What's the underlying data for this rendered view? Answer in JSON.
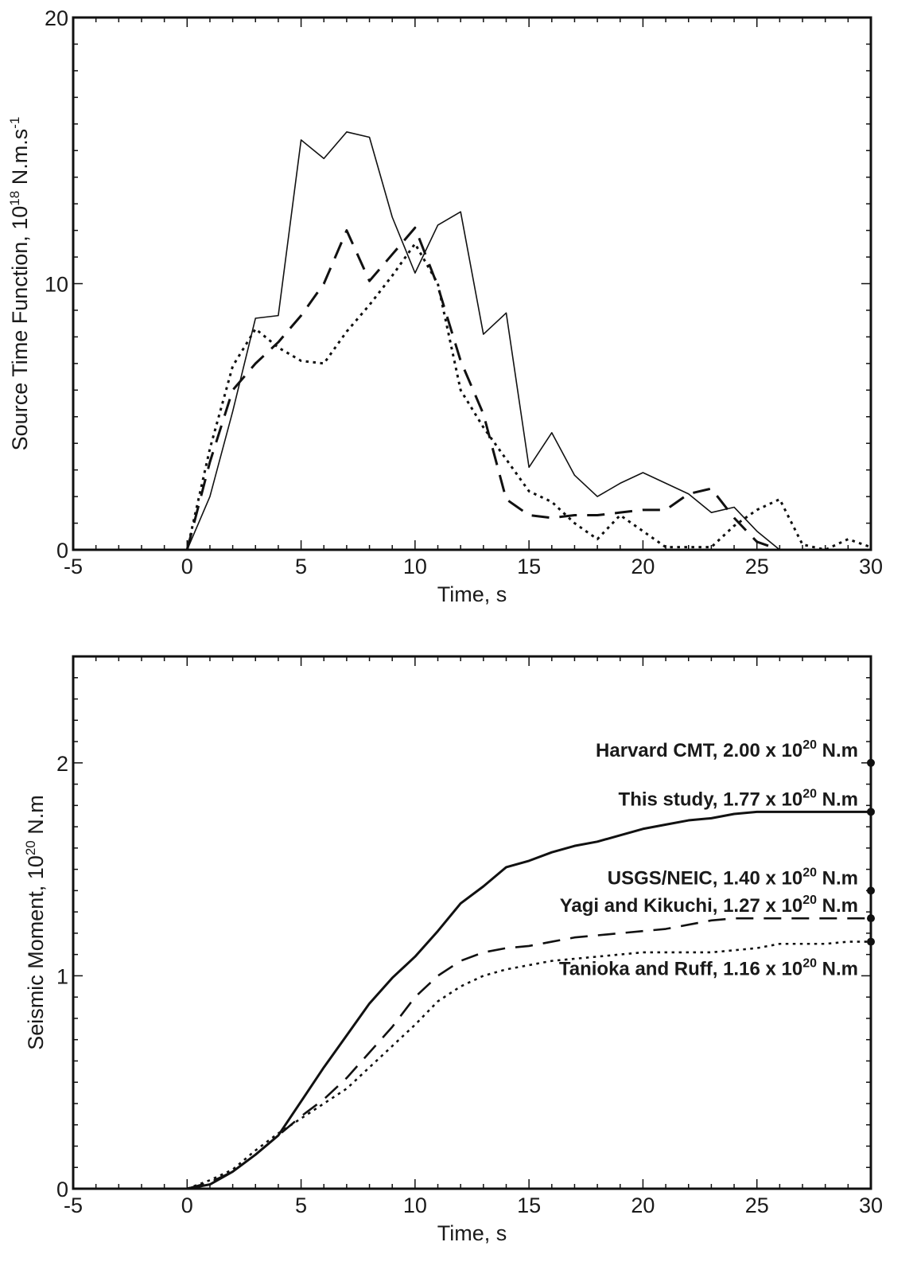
{
  "chart_data": [
    {
      "type": "line",
      "xlabel": "Time, s",
      "ylabel": "Source Time Function, 10^18 N.m.s^-1",
      "ylabel_parts": {
        "pre": "Source Time Function, 10",
        "sup1": "18",
        "mid": " N.m.s",
        "sup2": "-1"
      },
      "xlim": [
        -5,
        30
      ],
      "ylim": [
        0,
        20
      ],
      "x_ticks": [
        "-5",
        "0",
        "5",
        "10",
        "15",
        "20",
        "25",
        "30"
      ],
      "y_ticks": [
        "0",
        "10",
        "20"
      ],
      "grid": false,
      "series": [
        {
          "style": "solid",
          "x": [
            -5,
            0,
            1,
            2,
            3,
            4,
            5,
            6,
            7,
            8,
            9,
            10,
            11,
            12,
            13,
            14,
            15,
            16,
            17,
            18,
            19,
            20,
            21,
            22,
            23,
            24,
            25,
            26,
            30
          ],
          "y": [
            0,
            0,
            2.0,
            5.2,
            8.7,
            8.8,
            15.4,
            14.7,
            15.7,
            15.5,
            12.5,
            10.4,
            12.2,
            12.7,
            8.1,
            8.9,
            3.1,
            4.4,
            2.8,
            2.0,
            2.5,
            2.9,
            2.5,
            2.1,
            1.4,
            1.6,
            0.7,
            0,
            0
          ]
        },
        {
          "style": "dashed",
          "x": [
            0,
            1,
            2,
            3,
            4,
            5,
            6,
            7,
            8,
            9,
            10,
            11,
            12,
            13,
            14,
            15,
            16,
            17,
            18,
            19,
            20,
            21,
            22,
            23,
            24,
            25,
            26
          ],
          "y": [
            0,
            3.3,
            6.0,
            7.0,
            7.8,
            8.8,
            10.0,
            12.0,
            10.1,
            11.1,
            12.1,
            9.9,
            7.1,
            5.1,
            1.9,
            1.3,
            1.2,
            1.3,
            1.3,
            1.4,
            1.5,
            1.5,
            2.1,
            2.3,
            1.2,
            0.3,
            0
          ]
        },
        {
          "style": "dotted",
          "x": [
            0,
            1,
            2,
            3,
            4,
            5,
            6,
            7,
            8,
            9,
            10,
            11,
            12,
            13,
            14,
            15,
            16,
            17,
            18,
            19,
            20,
            21,
            22,
            23,
            24,
            25,
            26,
            27,
            28,
            29,
            30
          ],
          "y": [
            0,
            3.8,
            6.9,
            8.3,
            7.6,
            7.1,
            7.0,
            8.2,
            9.2,
            10.3,
            11.5,
            10.0,
            6.0,
            4.6,
            3.4,
            2.2,
            1.8,
            1.0,
            0.4,
            1.3,
            0.7,
            0.1,
            0.1,
            0.1,
            0.9,
            1.5,
            1.9,
            0.2,
            0,
            0.4,
            0.1
          ]
        }
      ]
    },
    {
      "type": "line",
      "xlabel": "Time, s",
      "ylabel": "Seismic Moment, 10^20 N.m",
      "ylabel_parts": {
        "pre": "Seismic Moment, 10",
        "sup1": "20",
        "mid": " N.m"
      },
      "xlim": [
        -5,
        30
      ],
      "ylim": [
        0,
        2.5
      ],
      "x_ticks": [
        "-5",
        "0",
        "5",
        "10",
        "15",
        "20",
        "25",
        "30"
      ],
      "y_ticks": [
        "0",
        "1",
        "2"
      ],
      "grid": false,
      "series": [
        {
          "style": "solid",
          "x": [
            0,
            1,
            2,
            3,
            4,
            5,
            6,
            7,
            8,
            9,
            10,
            11,
            12,
            13,
            14,
            15,
            16,
            17,
            18,
            19,
            20,
            21,
            22,
            23,
            24,
            25,
            26,
            27,
            28,
            29,
            30
          ],
          "y": [
            0,
            0.02,
            0.08,
            0.16,
            0.25,
            0.41,
            0.57,
            0.72,
            0.87,
            0.99,
            1.09,
            1.21,
            1.34,
            1.42,
            1.51,
            1.54,
            1.58,
            1.61,
            1.63,
            1.66,
            1.69,
            1.71,
            1.73,
            1.74,
            1.76,
            1.77,
            1.77,
            1.77,
            1.77,
            1.77,
            1.77
          ]
        },
        {
          "style": "dashed",
          "x": [
            0,
            1,
            2,
            3,
            4,
            5,
            6,
            7,
            8,
            9,
            10,
            11,
            12,
            13,
            14,
            15,
            16,
            17,
            18,
            19,
            20,
            21,
            22,
            23,
            24,
            25,
            26,
            27,
            28,
            29,
            30
          ],
          "y": [
            0,
            0.03,
            0.08,
            0.16,
            0.25,
            0.34,
            0.42,
            0.52,
            0.64,
            0.76,
            0.9,
            1.0,
            1.07,
            1.11,
            1.13,
            1.14,
            1.16,
            1.18,
            1.19,
            1.2,
            1.21,
            1.22,
            1.24,
            1.26,
            1.27,
            1.27,
            1.27,
            1.27,
            1.27,
            1.27,
            1.27
          ]
        },
        {
          "style": "dotted",
          "x": [
            0,
            1,
            2,
            3,
            4,
            5,
            6,
            7,
            8,
            9,
            10,
            11,
            12,
            13,
            14,
            15,
            16,
            17,
            18,
            19,
            20,
            21,
            22,
            23,
            24,
            25,
            26,
            27,
            28,
            29,
            30
          ],
          "y": [
            0,
            0.04,
            0.09,
            0.18,
            0.26,
            0.33,
            0.4,
            0.47,
            0.57,
            0.67,
            0.77,
            0.88,
            0.95,
            1.0,
            1.03,
            1.05,
            1.07,
            1.08,
            1.09,
            1.1,
            1.11,
            1.11,
            1.11,
            1.11,
            1.12,
            1.13,
            1.15,
            1.15,
            1.15,
            1.16,
            1.16
          ]
        }
      ],
      "markers": [
        {
          "x": 30,
          "y": 2.0,
          "label": "Harvard CMT, 2.00 x 10^20 N.m",
          "pre": "Harvard CMT, 2.00 x 10",
          "sup": "20",
          "post": " N.m"
        },
        {
          "x": 30,
          "y": 1.77,
          "label": "This study, 1.77 x 10^20 N.m",
          "pre": "This study, 1.77 x 10",
          "sup": "20",
          "post": " N.m"
        },
        {
          "x": 30,
          "y": 1.4,
          "label": "USGS/NEIC, 1.40 x 10^20 N.m",
          "pre": "USGS/NEIC, 1.40 x 10",
          "sup": "20",
          "post": " N.m"
        },
        {
          "x": 30,
          "y": 1.27,
          "label": "Yagi and Kikuchi, 1.27 x 10^20 N.m",
          "pre": "Yagi and Kikuchi, 1.27 x 10",
          "sup": "20",
          "post": " N.m"
        },
        {
          "x": 30,
          "y": 1.16,
          "label": "Tanioka and Ruff, 1.16 x 10^20 N.m",
          "pre": "Tanioka and Ruff, 1.16 x 10",
          "sup": "20",
          "post": " N.m"
        }
      ]
    }
  ]
}
